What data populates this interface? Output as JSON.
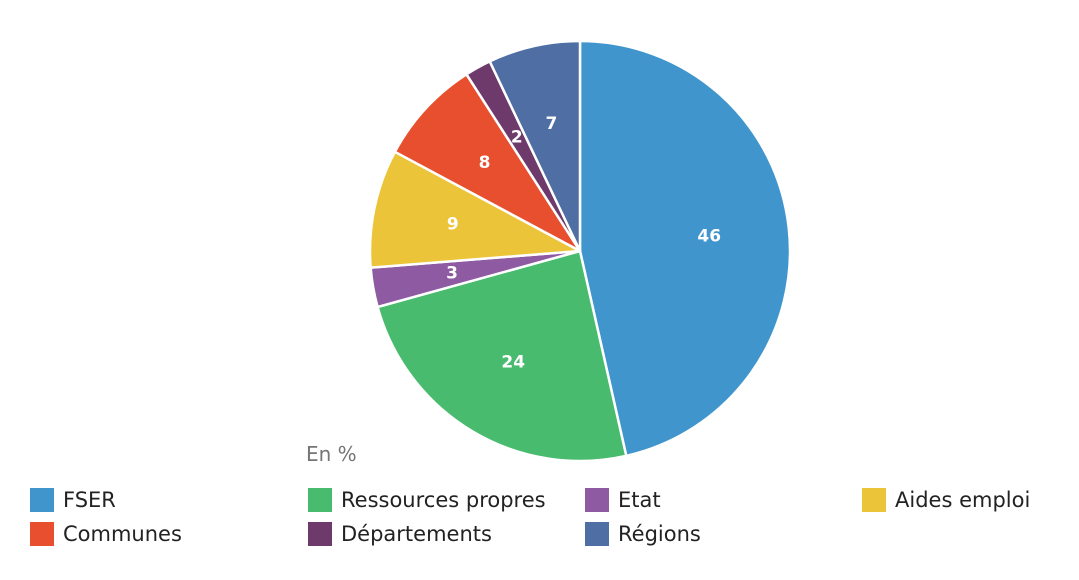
{
  "chart_data": {
    "type": "pie",
    "unit_note": "En %",
    "slices": [
      {
        "name": "FSER",
        "value": 46,
        "label": "46",
        "color": "#3f95cc"
      },
      {
        "name": "Ressources propres",
        "value": 24,
        "label": "24",
        "color": "#48bb6e"
      },
      {
        "name": "Etat",
        "value": 3,
        "label": "3",
        "color": "#8e5ba3"
      },
      {
        "name": "Aides emploi",
        "value": 9,
        "label": "9",
        "color": "#ecc43a"
      },
      {
        "name": "Communes",
        "value": 8,
        "label": "8",
        "color": "#e74f2e"
      },
      {
        "name": "Départements",
        "value": 2,
        "label": "2",
        "color": "#6d3a6b"
      },
      {
        "name": "Régions",
        "value": 7,
        "label": "7",
        "color": "#4f6ea3"
      }
    ],
    "legend": [
      [
        "FSER",
        "Ressources propres",
        "Etat",
        "Aides emploi"
      ],
      [
        "Communes",
        "Départements",
        "Régions"
      ]
    ],
    "legend_placement": "bottom"
  }
}
